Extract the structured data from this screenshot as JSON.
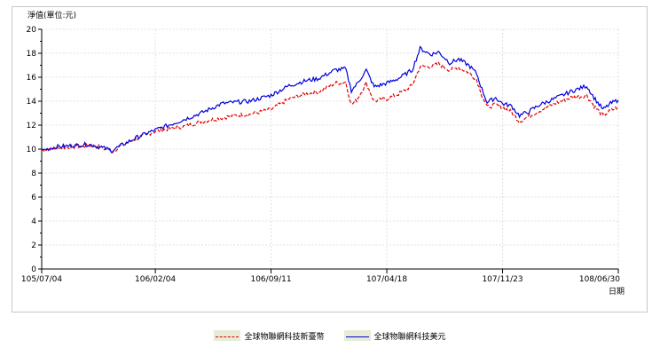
{
  "chart_data": {
    "type": "line",
    "ylabel": "淨值(單位:元)",
    "xlabel": "日期",
    "ylim": [
      0,
      20
    ],
    "y_ticks": [
      0,
      2,
      4,
      6,
      8,
      10,
      12,
      14,
      16,
      18,
      20
    ],
    "x_tick_labels": [
      "105/07/04",
      "106/02/04",
      "106/09/11",
      "107/04/18",
      "107/11/23",
      "108/06/30"
    ],
    "x_tick_dates": [
      "2016-07-04",
      "2017-02-04",
      "2017-09-11",
      "2018-04-18",
      "2018-11-23",
      "2019-06-30"
    ],
    "grid": true,
    "legend_position": "bottom-center",
    "series": [
      {
        "name": "全球物聯網科技新臺幣",
        "color": "#e00000",
        "dash": "4,2",
        "points": [
          [
            "2016-07-04",
            9.9
          ],
          [
            "2016-08-01",
            10.1
          ],
          [
            "2016-09-01",
            10.2
          ],
          [
            "2016-10-01",
            10.3
          ],
          [
            "2016-10-20",
            10.2
          ],
          [
            "2016-11-15",
            9.8
          ],
          [
            "2016-12-01",
            10.3
          ],
          [
            "2017-01-01",
            10.9
          ],
          [
            "2017-02-04",
            11.5
          ],
          [
            "2017-03-01",
            11.7
          ],
          [
            "2017-04-01",
            11.9
          ],
          [
            "2017-05-01",
            12.3
          ],
          [
            "2017-06-10",
            12.6
          ],
          [
            "2017-07-01",
            12.8
          ],
          [
            "2017-08-01",
            12.9
          ],
          [
            "2017-09-11",
            13.3
          ],
          [
            "2017-10-15",
            14.2
          ],
          [
            "2017-11-15",
            14.6
          ],
          [
            "2017-12-10",
            14.8
          ],
          [
            "2018-01-10",
            15.5
          ],
          [
            "2018-01-30",
            15.6
          ],
          [
            "2018-02-10",
            13.7
          ],
          [
            "2018-02-20",
            14.1
          ],
          [
            "2018-03-10",
            15.5
          ],
          [
            "2018-03-25",
            14.0
          ],
          [
            "2018-04-18",
            14.2
          ],
          [
            "2018-05-10",
            14.6
          ],
          [
            "2018-06-05",
            15.3
          ],
          [
            "2018-06-20",
            16.9
          ],
          [
            "2018-07-10",
            16.9
          ],
          [
            "2018-07-25",
            17.1
          ],
          [
            "2018-08-15",
            16.6
          ],
          [
            "2018-09-01",
            16.8
          ],
          [
            "2018-09-20",
            16.4
          ],
          [
            "2018-10-05",
            15.8
          ],
          [
            "2018-10-15",
            14.5
          ],
          [
            "2018-10-25",
            13.5
          ],
          [
            "2018-11-10",
            13.7
          ],
          [
            "2018-11-23",
            13.5
          ],
          [
            "2018-12-10",
            13.1
          ],
          [
            "2018-12-25",
            12.3
          ],
          [
            "2019-01-10",
            12.7
          ],
          [
            "2019-02-01",
            13.2
          ],
          [
            "2019-03-01",
            13.8
          ],
          [
            "2019-04-01",
            14.3
          ],
          [
            "2019-04-20",
            14.4
          ],
          [
            "2019-05-01",
            14.5
          ],
          [
            "2019-05-15",
            13.6
          ],
          [
            "2019-06-01",
            12.8
          ],
          [
            "2019-06-15",
            13.2
          ],
          [
            "2019-06-30",
            13.5
          ]
        ]
      },
      {
        "name": "全球物聯網科技美元",
        "color": "#0000dd",
        "dash": "",
        "points": [
          [
            "2016-07-04",
            9.9
          ],
          [
            "2016-08-01",
            10.2
          ],
          [
            "2016-09-01",
            10.3
          ],
          [
            "2016-10-01",
            10.4
          ],
          [
            "2016-10-20",
            10.2
          ],
          [
            "2016-11-15",
            9.9
          ],
          [
            "2016-12-01",
            10.3
          ],
          [
            "2017-01-01",
            11.0
          ],
          [
            "2017-02-04",
            11.6
          ],
          [
            "2017-03-01",
            12.0
          ],
          [
            "2017-04-01",
            12.5
          ],
          [
            "2017-05-01",
            13.0
          ],
          [
            "2017-06-10",
            13.8
          ],
          [
            "2017-07-01",
            13.9
          ],
          [
            "2017-08-01",
            14.0
          ],
          [
            "2017-09-11",
            14.5
          ],
          [
            "2017-10-15",
            15.3
          ],
          [
            "2017-11-15",
            15.7
          ],
          [
            "2017-12-10",
            15.9
          ],
          [
            "2018-01-10",
            16.6
          ],
          [
            "2018-01-30",
            16.7
          ],
          [
            "2018-02-10",
            14.9
          ],
          [
            "2018-02-20",
            15.4
          ],
          [
            "2018-03-10",
            16.6
          ],
          [
            "2018-03-25",
            15.2
          ],
          [
            "2018-04-18",
            15.5
          ],
          [
            "2018-05-10",
            15.9
          ],
          [
            "2018-06-05",
            16.6
          ],
          [
            "2018-06-20",
            18.4
          ],
          [
            "2018-07-10",
            17.9
          ],
          [
            "2018-07-25",
            18.1
          ],
          [
            "2018-08-15",
            17.2
          ],
          [
            "2018-09-01",
            17.5
          ],
          [
            "2018-09-20",
            17.0
          ],
          [
            "2018-10-05",
            16.3
          ],
          [
            "2018-10-15",
            15.0
          ],
          [
            "2018-10-25",
            13.9
          ],
          [
            "2018-11-10",
            14.3
          ],
          [
            "2018-11-23",
            13.8
          ],
          [
            "2018-12-10",
            13.6
          ],
          [
            "2018-12-25",
            12.8
          ],
          [
            "2019-01-10",
            13.1
          ],
          [
            "2019-02-01",
            13.7
          ],
          [
            "2019-03-01",
            14.2
          ],
          [
            "2019-04-01",
            14.8
          ],
          [
            "2019-04-20",
            15.1
          ],
          [
            "2019-05-01",
            15.3
          ],
          [
            "2019-05-15",
            14.3
          ],
          [
            "2019-06-01",
            13.3
          ],
          [
            "2019-06-15",
            13.8
          ],
          [
            "2019-06-30",
            14.1
          ]
        ]
      }
    ]
  }
}
